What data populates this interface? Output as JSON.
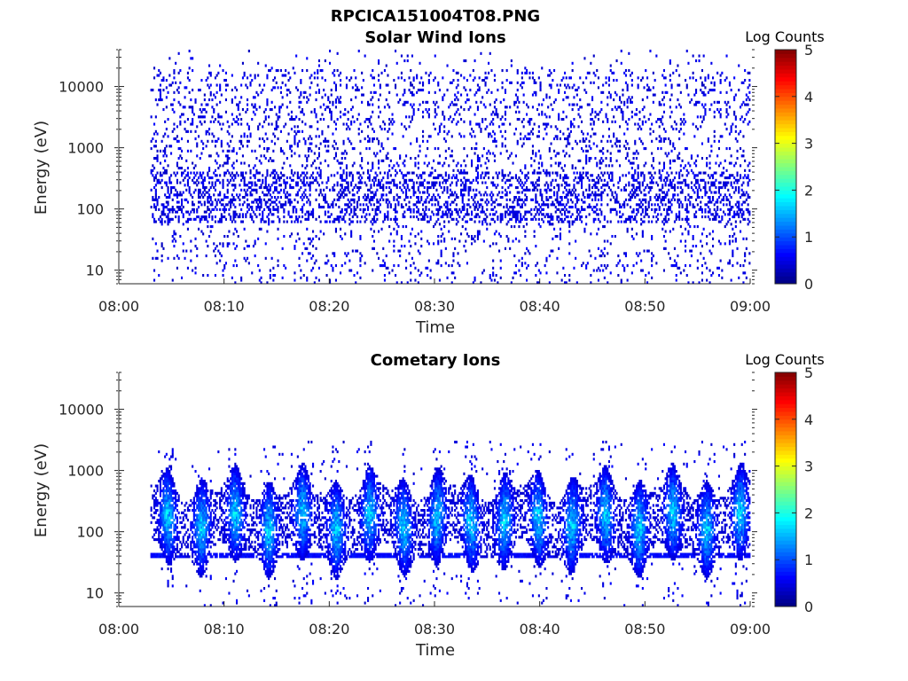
{
  "figure": {
    "title": "RPCICA151004T08.PNG"
  },
  "colorbar": {
    "label": "Log Counts",
    "ticks": [
      "0",
      "1",
      "2",
      "3",
      "4",
      "5"
    ],
    "range": [
      0,
      5
    ],
    "colormap": "jet"
  },
  "chart_data": [
    {
      "type": "heatmap",
      "title": "Solar Wind Ions",
      "xlabel": "Time",
      "ylabel": "Energy (eV)",
      "x_ticks": [
        "08:00",
        "08:10",
        "08:20",
        "08:30",
        "08:40",
        "08:50",
        "09:00"
      ],
      "x_range": [
        "08:00",
        "09:00"
      ],
      "data_x_range": [
        "08:03",
        "09:00"
      ],
      "y_ticks": [
        "10",
        "100",
        "1000",
        "10000"
      ],
      "y_scale": "log",
      "y_range": [
        6,
        40000
      ],
      "value_range": [
        0,
        5
      ],
      "typical_log_counts": [
        0,
        0.5
      ],
      "dominant_energy_band_eV": [
        60,
        400
      ],
      "sparse_counts_up_to_eV": 30000,
      "description_color": "#00008f"
    },
    {
      "type": "heatmap",
      "title": "Cometary Ions",
      "xlabel": "Time",
      "ylabel": "Energy (eV)",
      "x_ticks": [
        "08:00",
        "08:10",
        "08:20",
        "08:30",
        "08:40",
        "08:50",
        "09:00"
      ],
      "x_range": [
        "08:00",
        "09:00"
      ],
      "data_x_range": [
        "08:03",
        "09:00"
      ],
      "y_ticks": [
        "10",
        "100",
        "1000",
        "10000"
      ],
      "y_scale": "log",
      "y_range": [
        6,
        40000
      ],
      "value_range": [
        0,
        5
      ],
      "typical_log_counts": [
        0,
        1.8
      ],
      "dominant_energy_band_eV": [
        40,
        600
      ],
      "baseline_band_eV": 40,
      "burst_period_minutes": 3.2,
      "description_color": "#0050ff"
    }
  ]
}
